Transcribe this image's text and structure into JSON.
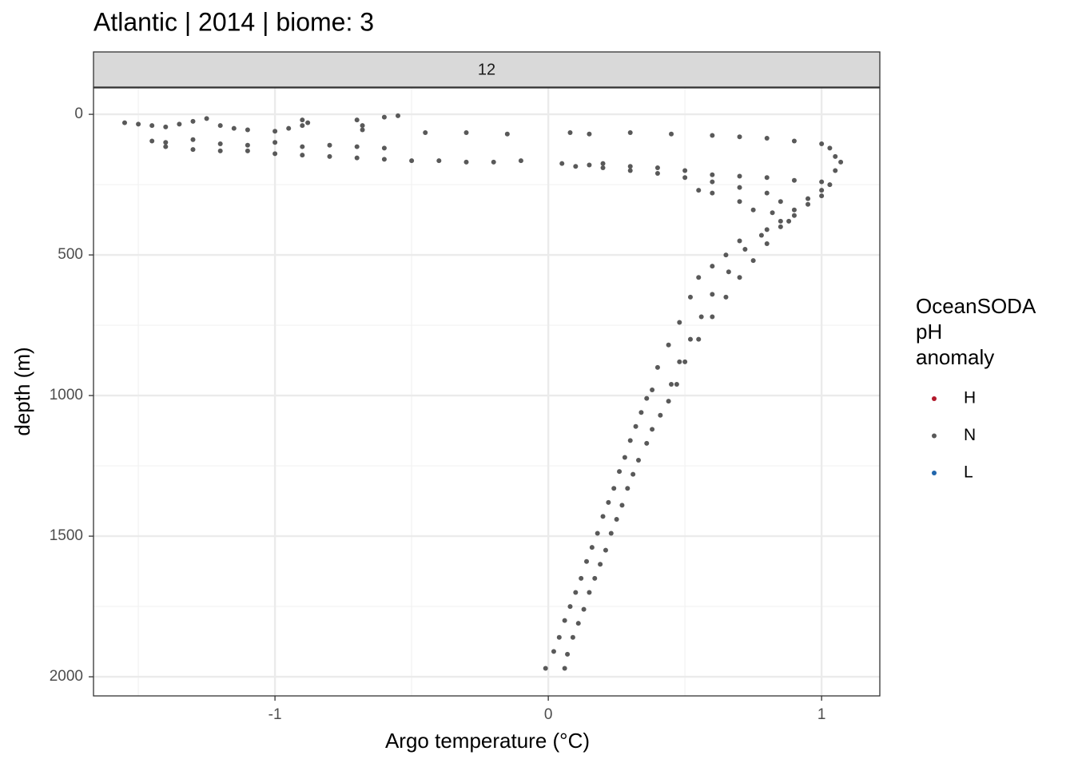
{
  "chart_data": {
    "type": "scatter",
    "title": "Atlantic | 2014 | biome: 3",
    "facet_label": "12",
    "x_label": "Argo temperature (°C)",
    "y_label": "depth (m)",
    "legend_title": [
      "OceanSODA",
      "pH",
      "anomaly"
    ],
    "xlim": [
      -1.664,
      1.213
    ],
    "ylim": [
      2068,
      -94
    ],
    "xticks": [
      -1,
      0,
      1
    ],
    "yticks": [
      0,
      500,
      1000,
      1500,
      2000
    ],
    "x_minor_grid": [
      -1.5,
      -0.5,
      0.5
    ],
    "y_minor_grid": [
      250,
      750,
      1250,
      1750
    ],
    "grid": true,
    "series": [
      {
        "name": "H",
        "color": "#b2182b",
        "x": [],
        "y": []
      },
      {
        "name": "N",
        "color": "#595959",
        "x": [
          -1.55,
          -1.5,
          -1.45,
          -1.4,
          -1.35,
          -1.3,
          -1.25,
          -1.2,
          -1.15,
          -1.1,
          -1.0,
          -0.95,
          -0.9,
          -0.9,
          -0.88,
          -0.7,
          -0.68,
          -0.68,
          -0.6,
          -0.55,
          -1.45,
          -1.4,
          -1.3,
          -1.2,
          -1.1,
          -1.0,
          -0.9,
          -0.8,
          -0.7,
          -0.6,
          -0.45,
          -0.3,
          -0.15,
          0.08,
          0.15,
          0.3,
          0.45,
          0.6,
          0.7,
          0.8,
          0.9,
          1.0,
          1.03,
          -1.4,
          -1.3,
          -1.2,
          -1.1,
          -1.0,
          -0.9,
          -0.8,
          -0.7,
          -0.6,
          -0.5,
          -0.4,
          -0.3,
          -0.2,
          -0.1,
          0.05,
          0.15,
          0.2,
          0.3,
          0.4,
          0.5,
          0.6,
          0.7,
          0.8,
          0.9,
          1.0,
          1.05,
          1.07,
          1.05,
          0.1,
          0.2,
          0.3,
          0.4,
          0.5,
          0.6,
          0.7,
          0.8,
          0.85,
          0.82,
          0.75,
          0.7,
          0.6,
          0.55,
          1.03,
          1.0,
          0.95,
          0.9,
          0.85,
          0.8,
          0.75,
          0.7,
          0.65,
          0.6,
          0.55,
          0.5,
          0.47,
          1.0,
          0.95,
          0.9,
          0.85,
          0.78,
          0.72,
          0.66,
          0.6,
          0.56,
          0.52,
          0.48,
          0.45,
          0.88,
          0.8,
          0.7,
          0.65,
          0.6,
          0.55,
          0.52,
          0.48,
          0.44,
          0.4,
          0.38,
          0.44,
          0.41,
          0.38,
          0.36,
          0.33,
          0.31,
          0.29,
          0.27,
          0.25,
          0.23,
          0.21,
          0.19,
          0.17,
          0.15,
          0.13,
          0.11,
          0.09,
          0.07,
          0.06,
          0.36,
          0.34,
          0.32,
          0.3,
          0.28,
          0.26,
          0.24,
          0.22,
          0.2,
          0.18,
          0.16,
          0.14,
          0.12,
          0.1,
          0.08,
          0.06,
          0.04,
          0.02,
          -0.01
        ],
        "y": [
          30,
          35,
          40,
          45,
          35,
          25,
          15,
          40,
          50,
          55,
          60,
          50,
          40,
          20,
          30,
          20,
          40,
          55,
          10,
          5,
          95,
          100,
          90,
          105,
          110,
          100,
          115,
          110,
          115,
          120,
          65,
          65,
          70,
          65,
          70,
          65,
          70,
          75,
          80,
          85,
          95,
          105,
          120,
          115,
          125,
          130,
          130,
          140,
          145,
          150,
          155,
          160,
          165,
          165,
          170,
          170,
          165,
          175,
          180,
          175,
          185,
          190,
          200,
          215,
          220,
          225,
          235,
          240,
          200,
          170,
          150,
          185,
          190,
          200,
          210,
          225,
          240,
          260,
          280,
          310,
          350,
          340,
          310,
          280,
          270,
          250,
          290,
          320,
          360,
          400,
          460,
          520,
          580,
          650,
          720,
          800,
          880,
          960,
          270,
          300,
          340,
          380,
          430,
          480,
          560,
          640,
          720,
          800,
          880,
          960,
          380,
          410,
          450,
          500,
          540,
          580,
          650,
          740,
          820,
          900,
          980,
          1020,
          1070,
          1120,
          1170,
          1230,
          1280,
          1330,
          1390,
          1440,
          1490,
          1550,
          1600,
          1650,
          1700,
          1760,
          1810,
          1860,
          1920,
          1970,
          1010,
          1060,
          1110,
          1160,
          1220,
          1270,
          1330,
          1380,
          1430,
          1490,
          1540,
          1590,
          1650,
          1700,
          1750,
          1800,
          1860,
          1910,
          1970
        ]
      },
      {
        "name": "L",
        "color": "#2166ac",
        "x": [],
        "y": []
      }
    ]
  }
}
